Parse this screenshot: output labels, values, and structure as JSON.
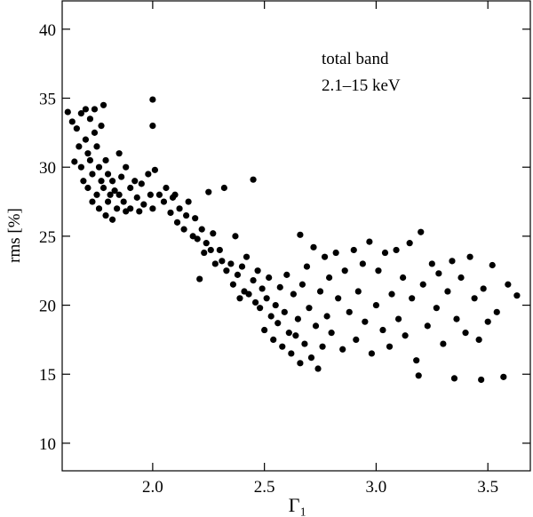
{
  "chart_data": {
    "type": "scatter",
    "x_label": "Γ₁",
    "y_label": "rms [%]",
    "annotations": [
      "total band",
      "2.1–15 keV"
    ],
    "color": "#000000",
    "xlim": [
      1.595,
      3.69
    ],
    "ylim": [
      8.0,
      42.05
    ],
    "xticks": [
      {
        "value": 2.0,
        "label": "2.0"
      },
      {
        "value": 2.5,
        "label": "2.5"
      },
      {
        "value": 3.0,
        "label": "3.0"
      },
      {
        "value": 3.5,
        "label": "3.5"
      }
    ],
    "yticks": [
      10,
      15,
      20,
      25,
      30,
      35,
      40
    ],
    "x": [
      1.62,
      1.64,
      1.65,
      1.66,
      1.67,
      1.68,
      1.68,
      1.69,
      1.7,
      1.7,
      1.71,
      1.71,
      1.72,
      1.72,
      1.73,
      1.73,
      1.74,
      1.74,
      1.75,
      1.75,
      1.76,
      1.76,
      1.77,
      1.77,
      1.78,
      1.78,
      1.79,
      1.79,
      1.8,
      1.8,
      1.81,
      1.82,
      1.82,
      1.83,
      1.84,
      1.85,
      1.85,
      1.86,
      1.87,
      1.88,
      1.88,
      1.9,
      1.9,
      1.92,
      1.93,
      1.94,
      1.95,
      1.96,
      1.98,
      1.99,
      2.0,
      2.0,
      2.0,
      2.01,
      2.03,
      2.05,
      2.06,
      2.08,
      2.09,
      2.1,
      2.11,
      2.12,
      2.14,
      2.15,
      2.16,
      2.18,
      2.19,
      2.2,
      2.21,
      2.22,
      2.23,
      2.24,
      2.25,
      2.26,
      2.27,
      2.28,
      2.3,
      2.31,
      2.32,
      2.33,
      2.35,
      2.36,
      2.37,
      2.38,
      2.39,
      2.4,
      2.41,
      2.42,
      2.43,
      2.45,
      2.45,
      2.46,
      2.47,
      2.48,
      2.49,
      2.5,
      2.51,
      2.52,
      2.53,
      2.54,
      2.55,
      2.56,
      2.57,
      2.58,
      2.59,
      2.6,
      2.61,
      2.62,
      2.63,
      2.64,
      2.65,
      2.66,
      2.66,
      2.67,
      2.68,
      2.69,
      2.7,
      2.71,
      2.72,
      2.73,
      2.74,
      2.75,
      2.76,
      2.77,
      2.78,
      2.79,
      2.8,
      2.82,
      2.83,
      2.85,
      2.86,
      2.88,
      2.9,
      2.91,
      2.92,
      2.94,
      2.95,
      2.97,
      2.98,
      3.0,
      3.01,
      3.03,
      3.04,
      3.06,
      3.07,
      3.09,
      3.1,
      3.12,
      3.13,
      3.15,
      3.16,
      3.18,
      3.19,
      3.2,
      3.21,
      3.23,
      3.25,
      3.27,
      3.28,
      3.3,
      3.32,
      3.34,
      3.35,
      3.36,
      3.38,
      3.4,
      3.42,
      3.44,
      3.46,
      3.47,
      3.48,
      3.5,
      3.52,
      3.54,
      3.57,
      3.59,
      3.63
    ],
    "values": [
      34.0,
      33.3,
      30.4,
      32.8,
      31.5,
      33.9,
      30.0,
      29.0,
      34.2,
      32.0,
      31.0,
      28.5,
      33.5,
      30.5,
      29.5,
      27.5,
      34.2,
      32.5,
      31.5,
      28.0,
      30.0,
      27.0,
      33.0,
      29.0,
      34.5,
      28.5,
      30.5,
      26.5,
      29.5,
      27.5,
      28.0,
      26.2,
      29.0,
      28.3,
      27.0,
      31.0,
      28.0,
      29.3,
      27.5,
      26.8,
      30.0,
      28.5,
      27.0,
      29.0,
      27.8,
      26.8,
      28.8,
      27.3,
      29.5,
      28.0,
      34.9,
      33.0,
      27.0,
      29.8,
      28.0,
      27.5,
      28.5,
      26.7,
      27.8,
      28.0,
      26.0,
      27.0,
      25.5,
      26.5,
      27.5,
      25.0,
      26.3,
      24.8,
      21.9,
      25.5,
      23.8,
      24.5,
      28.2,
      24.0,
      25.2,
      23.0,
      24.0,
      23.2,
      28.5,
      22.5,
      23.0,
      21.5,
      25.0,
      22.2,
      20.5,
      22.8,
      21.0,
      23.5,
      20.8,
      29.1,
      21.8,
      20.2,
      22.5,
      19.8,
      21.2,
      18.2,
      20.5,
      22.0,
      19.2,
      17.5,
      20.0,
      18.7,
      21.3,
      17.0,
      19.5,
      22.2,
      18.0,
      16.5,
      20.8,
      17.8,
      19.0,
      25.1,
      15.8,
      21.5,
      17.2,
      22.8,
      19.8,
      16.2,
      24.2,
      18.5,
      15.4,
      21.0,
      17.0,
      23.5,
      19.2,
      22.0,
      18.0,
      23.8,
      20.5,
      16.8,
      22.5,
      19.5,
      24.0,
      17.5,
      21.0,
      23.0,
      18.8,
      24.6,
      16.5,
      20.0,
      22.5,
      18.2,
      23.8,
      17.0,
      20.8,
      24.0,
      19.0,
      22.0,
      17.8,
      24.5,
      20.5,
      16.0,
      14.9,
      25.3,
      21.5,
      18.5,
      23.0,
      19.8,
      22.3,
      17.2,
      21.0,
      23.2,
      14.7,
      19.0,
      22.0,
      18.0,
      23.5,
      20.5,
      17.5,
      14.6,
      21.2,
      18.8,
      22.9,
      19.5,
      14.8,
      21.5,
      20.7
    ]
  }
}
